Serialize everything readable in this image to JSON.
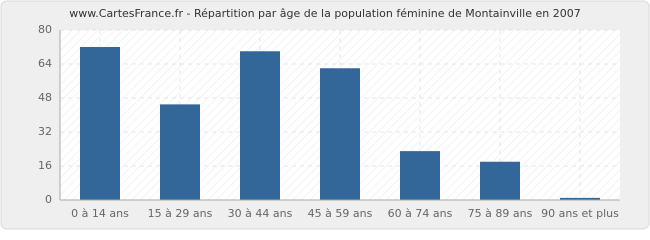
{
  "chart_data": {
    "type": "bar",
    "title": "www.CartesFrance.fr - Répartition par âge de la population féminine de Montainville en 2007",
    "categories": [
      "0 à 14 ans",
      "15 à 29 ans",
      "30 à 44 ans",
      "45 à 59 ans",
      "60 à 74 ans",
      "75 à 89 ans",
      "90 ans et plus"
    ],
    "values": [
      72,
      45,
      70,
      62,
      23,
      18,
      1
    ],
    "color": "#336699",
    "ylim": [
      0,
      80
    ],
    "yticks": [
      0,
      16,
      32,
      48,
      64,
      80
    ],
    "grid": true
  }
}
